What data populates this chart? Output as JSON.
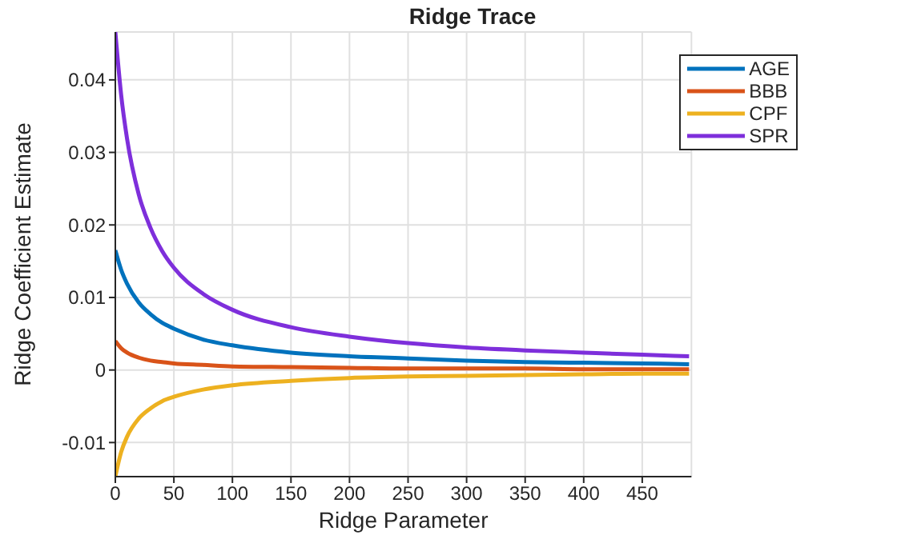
{
  "chart_data": {
    "type": "line",
    "title": "Ridge Trace",
    "xlabel": "Ridge Parameter",
    "ylabel": "Ridge Coefficient Estimate",
    "x": [
      0,
      5,
      10,
      20,
      30,
      40,
      50,
      75,
      100,
      150,
      200,
      250,
      300,
      350,
      400,
      450,
      490
    ],
    "series": [
      {
        "name": "AGE",
        "color": "#0072bd",
        "values": [
          0.0165,
          0.0138,
          0.0119,
          0.0093,
          0.0077,
          0.0065,
          0.0057,
          0.0042,
          0.0034,
          0.0024,
          0.0019,
          0.0016,
          0.0013,
          0.0011,
          0.001,
          0.0009,
          0.0008
        ]
      },
      {
        "name": "BBB",
        "color": "#d95319",
        "values": [
          0.004,
          0.003,
          0.0024,
          0.0017,
          0.0013,
          0.0011,
          0.0009,
          0.0007,
          0.0005,
          0.0004,
          0.0003,
          0.0002,
          0.0002,
          0.0002,
          0.0001,
          0.0001,
          0.0001
        ]
      },
      {
        "name": "CPF",
        "color": "#edb120",
        "values": [
          -0.0147,
          -0.0113,
          -0.0092,
          -0.0067,
          -0.0053,
          -0.0043,
          -0.0037,
          -0.0027,
          -0.0021,
          -0.0015,
          -0.0011,
          -0.0009,
          -0.0008,
          -0.0007,
          -0.0006,
          -0.0005,
          -0.0005
        ]
      },
      {
        "name": "SPR",
        "color": "#7e2fdb",
        "values": [
          0.0466,
          0.0379,
          0.0319,
          0.0242,
          0.0196,
          0.0164,
          0.0141,
          0.0105,
          0.0083,
          0.0059,
          0.0046,
          0.0037,
          0.0031,
          0.0027,
          0.0024,
          0.0021,
          0.0019
        ]
      }
    ],
    "xlim": [
      0,
      492
    ],
    "xticks": [
      0,
      50,
      100,
      150,
      200,
      250,
      300,
      350,
      400,
      450
    ],
    "ylim": [
      -0.0147,
      0.0466
    ],
    "yticks": [
      -0.01,
      0,
      0.01,
      0.02,
      0.03,
      0.04
    ],
    "grid": true,
    "legend": "top right",
    "marker": "none",
    "line_style": "solid"
  }
}
